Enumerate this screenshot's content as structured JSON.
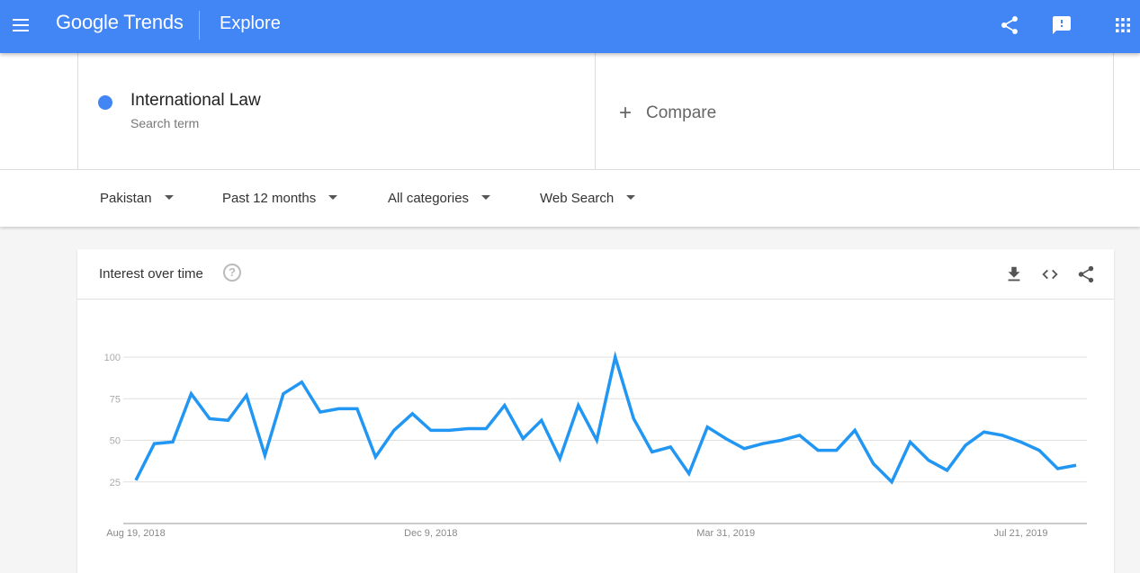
{
  "header": {
    "logo": "Google Trends",
    "section": "Explore",
    "icons": [
      "menu-icon",
      "share-icon",
      "feedback-icon",
      "apps-icon"
    ]
  },
  "search": {
    "term": "International Law",
    "term_sub": "Search term",
    "term_color": "#4285f4",
    "compare_label": "Compare"
  },
  "filters": {
    "region": "Pakistan",
    "time": "Past 12 months",
    "category": "All categories",
    "type": "Web Search"
  },
  "card": {
    "title": "Interest over time",
    "icons": [
      "download-icon",
      "embed-icon",
      "share-icon"
    ]
  },
  "chart_data": {
    "type": "line",
    "title": "Interest over time",
    "xlabel": "",
    "ylabel": "",
    "ylim": [
      0,
      100
    ],
    "yticks": [
      25,
      50,
      75,
      100
    ],
    "grid": true,
    "xtick_labels": [
      "Aug 19, 2018",
      "Dec 9, 2018",
      "Mar 31, 2019",
      "Jul 21, 2019"
    ],
    "xtick_index": [
      0,
      16,
      32,
      48
    ],
    "start_week": "Aug 19, 2018",
    "interval": "weekly",
    "series": [
      {
        "color": "#2196f3",
        "values": [
          26,
          48,
          49,
          78,
          63,
          62,
          77,
          41,
          78,
          85,
          67,
          69,
          69,
          40,
          56,
          66,
          56,
          56,
          57,
          57,
          71,
          51,
          62,
          39,
          71,
          50,
          100,
          63,
          43,
          46,
          30,
          58,
          51,
          45,
          48,
          50,
          53,
          44,
          44,
          56,
          36,
          25,
          49,
          38,
          32,
          47,
          55,
          53,
          49,
          44,
          33,
          35
        ]
      }
    ]
  }
}
